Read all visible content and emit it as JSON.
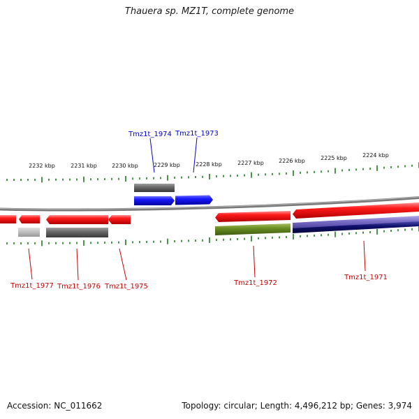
{
  "title": "Thauera sp. MZ1T, complete genome",
  "footer": {
    "accession": "Accession: NC_011662",
    "summary": "Topology: circular; Length: 4,496,212 bp; Genes: 3,974"
  },
  "scale_labels": [
    "2232 kbp",
    "2231 kbp",
    "2230 kbp",
    "2229 kbp",
    "2228 kbp",
    "2227 kbp",
    "2226 kbp",
    "2225 kbp",
    "2224 kbp"
  ],
  "gene_labels": {
    "tmz1t_1974": "Tmz1t_1974",
    "tmz1t_1973": "Tmz1t_1973",
    "tmz1t_1977": "Tmz1t_1977",
    "tmz1t_1976": "Tmz1t_1976",
    "tmz1t_1975": "Tmz1t_1975",
    "tmz1t_1972": "Tmz1t_1972",
    "tmz1t_1971": "Tmz1t_1971"
  },
  "colors": {
    "forward_cds": "#0000ff",
    "reverse_cds": "#ff0000",
    "gene_gray": "#6e6e6e",
    "light_gray": "#c0c0c0",
    "olive": "#6b8e23",
    "purple": "#7b6fc8",
    "navy": "#10106e",
    "tick_green": "#1a7a1a",
    "backbone": "#7a7a7a",
    "label_blue": "#0000cc",
    "label_red": "#cc0000"
  }
}
